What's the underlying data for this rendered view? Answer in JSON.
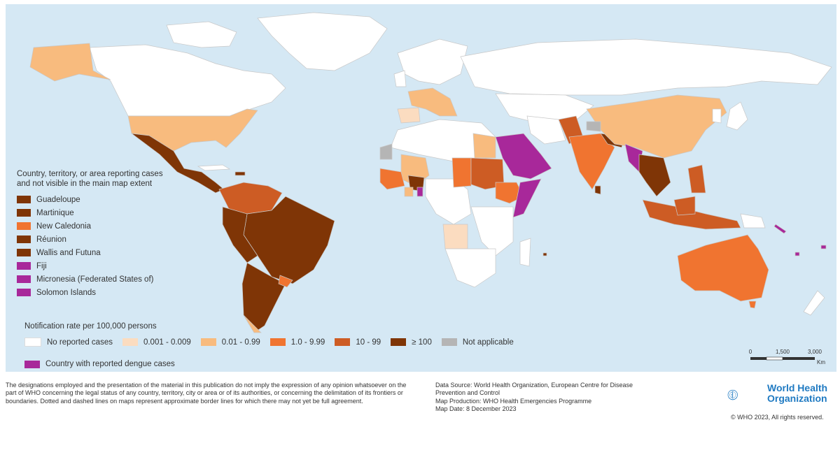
{
  "legend": {
    "territories_title_line1": "Country, territory, or area reporting cases",
    "territories_title_line2": "and not visible in the main map extent",
    "territories": [
      {
        "label": "Guadeloupe",
        "color": "#7f3506"
      },
      {
        "label": "Martinique",
        "color": "#7f3506"
      },
      {
        "label": "New Caledonia",
        "color": "#f07430"
      },
      {
        "label": "Réunion",
        "color": "#7f3506"
      },
      {
        "label": "Wallis and Futuna",
        "color": "#7f3506"
      },
      {
        "label": "Fiji",
        "color": "#a8289a"
      },
      {
        "label": "Micronesia (Federated States of)",
        "color": "#a8289a"
      },
      {
        "label": "Solomon Islands",
        "color": "#a8289a"
      }
    ],
    "rate_title": "Notification rate per 100,000 persons",
    "rates": [
      {
        "label": "No reported cases",
        "color": "#ffffff"
      },
      {
        "label": "0.001 - 0.009",
        "color": "#fbdcc0"
      },
      {
        "label": "0.01 - 0.99",
        "color": "#f8bb7e"
      },
      {
        "label": "1.0 - 9.99",
        "color": "#f07430"
      },
      {
        "label": "10 - 99",
        "color": "#cd5c24"
      },
      {
        "label": "≥ 100",
        "color": "#7f3506"
      },
      {
        "label": "Not applicable",
        "color": "#b5b5b5"
      }
    ],
    "dengue_label": "Country with reported dengue cases",
    "dengue_color": "#a8289a"
  },
  "scale": {
    "tick0": "0",
    "tick1": "1,500",
    "tick2": "3,000",
    "unit": "Km"
  },
  "footer": {
    "disclaimer": "The designations employed and the presentation of the material in this publication do not imply the expression of any opinion whatsoever on the part of WHO concerning the legal status of any country, territory, city or area or of its authorities, or concerning the delimitation of its frontiers or boundaries. Dotted and dashed lines on maps represent approximate border lines for which there may not yet be full agreement.",
    "source_line1": "Data Source: World Health Organization, European Centre for Disease",
    "source_line2": "Prevention and Control",
    "source_line3": "Map Production: WHO Health Emergencies Programme",
    "source_line4": "Map Date:  8 December 2023",
    "org_line1": "World Health",
    "org_line2": "Organization",
    "copyright": "© WHO 2023, All rights reserved."
  },
  "colors": {
    "ocean": "#d5e8f4",
    "no_cases": "#ffffff",
    "very_low": "#fbdcc0",
    "low": "#f8bb7e",
    "medium": "#f07430",
    "high": "#cd5c24",
    "very_high": "#7f3506",
    "not_applicable": "#b5b5b5",
    "dengue": "#a8289a",
    "who_blue": "#1f7ac2"
  }
}
